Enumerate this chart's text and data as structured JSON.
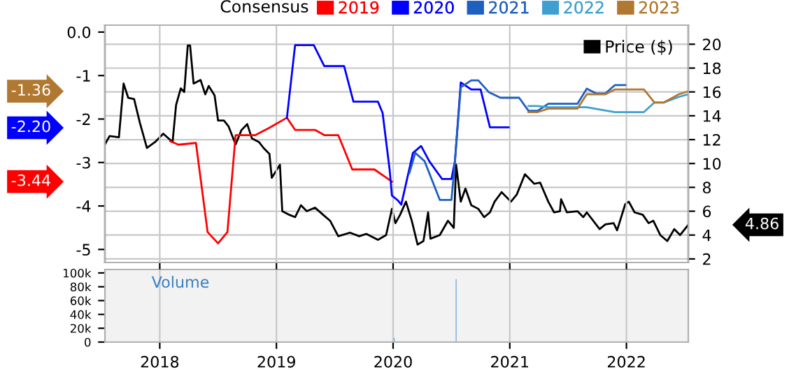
{
  "chart_data": [
    {
      "type": "line",
      "legend_title": "Consensus",
      "legend": "top",
      "grid": true,
      "tick_labels": "y",
      "xlim": [
        2017.53,
        2022.53
      ],
      "xticks": [
        2018,
        2019,
        2020,
        2021,
        2022
      ],
      "ylim": [
        -5.3,
        0.16
      ],
      "yticks": [
        {
          "value": 0,
          "label": "0.0"
        },
        -1,
        -2,
        -3,
        -4,
        -5
      ],
      "y2lim": [
        1.7,
        21.6
      ],
      "y2ticks": [
        2,
        4,
        6,
        8,
        10,
        12,
        14,
        16,
        18,
        20
      ],
      "annotations": [
        "-1.36",
        "-2.20",
        "-3.44",
        "4.86"
      ],
      "series": [
        {
          "name": "2019",
          "color": "#ff0000",
          "x": [
            2018.09,
            2018.16,
            2018.31,
            2018.41,
            2018.5,
            2018.58,
            2018.65,
            2018.82,
            2018.94,
            2019.09,
            2019.16,
            2019.33,
            2019.41,
            2019.53,
            2019.65,
            2019.84,
            2019.99
          ],
          "values": [
            -2.51,
            -2.59,
            -2.55,
            -4.6,
            -4.86,
            -4.6,
            -2.37,
            -2.37,
            -2.2,
            -1.97,
            -2.25,
            -2.25,
            -2.37,
            -2.37,
            -3.16,
            -3.16,
            -3.44
          ]
        },
        {
          "name": "2020",
          "color": "#0000ff",
          "x": [
            2019.09,
            2019.16,
            2019.32,
            2019.41,
            2019.58,
            2019.66,
            2019.87,
            2019.91,
            2019.97,
            2019.99,
            2020.04,
            2020.07,
            2020.17,
            2020.24,
            2020.31,
            2020.42,
            2020.5,
            2020.53,
            2020.58,
            2020.67,
            2020.75,
            2020.83,
            2020.99
          ],
          "values": [
            -1.97,
            -0.3,
            -0.3,
            -0.78,
            -0.78,
            -1.6,
            -1.6,
            -1.86,
            -3.16,
            -3.76,
            -3.87,
            -3.97,
            -2.78,
            -2.62,
            -2.97,
            -3.38,
            -3.38,
            -2.97,
            -1.16,
            -1.32,
            -1.32,
            -2.19,
            -2.19
          ]
        },
        {
          "name": "2021",
          "color": "#1f5fbf",
          "x": [
            2020.14,
            2020.19,
            2020.27,
            2020.4,
            2020.5,
            2020.53,
            2020.58,
            2020.67,
            2020.73,
            2020.82,
            2020.92,
            2021.08,
            2021.16,
            2021.24,
            2021.33,
            2021.58,
            2021.66,
            2021.74,
            2021.82,
            2021.9,
            2021.99
          ],
          "values": [
            -3.24,
            -2.78,
            -2.97,
            -3.86,
            -3.86,
            -2.97,
            -1.27,
            -1.11,
            -1.11,
            -1.38,
            -1.51,
            -1.51,
            -1.81,
            -1.81,
            -1.65,
            -1.65,
            -1.3,
            -1.41,
            -1.41,
            -1.22,
            -1.22
          ]
        },
        {
          "name": "2022",
          "color": "#3fa0d0",
          "x": [
            2021.16,
            2021.24,
            2021.33,
            2021.58,
            2021.66,
            2021.9,
            2022.15,
            2022.24,
            2022.32,
            2022.45,
            2022.53
          ],
          "values": [
            -1.7,
            -1.7,
            -1.73,
            -1.73,
            -1.73,
            -1.84,
            -1.84,
            -1.62,
            -1.62,
            -1.49,
            -1.43
          ]
        },
        {
          "name": "2023",
          "color": "#b07830",
          "x": [
            2021.16,
            2021.24,
            2021.33,
            2021.58,
            2021.66,
            2021.82,
            2021.9,
            2022.15,
            2022.24,
            2022.32,
            2022.45,
            2022.53
          ],
          "values": [
            -1.84,
            -1.84,
            -1.76,
            -1.76,
            -1.43,
            -1.43,
            -1.32,
            -1.32,
            -1.62,
            -1.62,
            -1.43,
            -1.36
          ]
        },
        {
          "name": "Price ($)",
          "color": "#000000",
          "axis": "y2",
          "x": [
            2017.53,
            2017.57,
            2017.65,
            2017.69,
            2017.73,
            2017.78,
            2017.83,
            2017.89,
            2017.96,
            2018.03,
            2018.11,
            2018.14,
            2018.18,
            2018.21,
            2018.24,
            2018.26,
            2018.29,
            2018.35,
            2018.39,
            2018.42,
            2018.47,
            2018.5,
            2018.55,
            2018.59,
            2018.65,
            2018.7,
            2018.75,
            2018.79,
            2018.85,
            2018.89,
            2018.94,
            2018.96,
            2019.03,
            2019.05,
            2019.11,
            2019.16,
            2019.21,
            2019.26,
            2019.33,
            2019.4,
            2019.46,
            2019.53,
            2019.63,
            2019.71,
            2019.77,
            2019.87,
            2019.94,
            2019.99,
            2020.02,
            2020.06,
            2020.11,
            2020.16,
            2020.21,
            2020.26,
            2020.3,
            2020.32,
            2020.4,
            2020.47,
            2020.52,
            2020.54,
            2020.58,
            2020.62,
            2020.67,
            2020.73,
            2020.78,
            2020.83,
            2020.87,
            2020.93,
            2021.01,
            2021.06,
            2021.13,
            2021.21,
            2021.26,
            2021.33,
            2021.38,
            2021.43,
            2021.44,
            2021.49,
            2021.58,
            2021.63,
            2021.66,
            2021.77,
            2021.82,
            2021.89,
            2021.92,
            2021.99,
            2022.02,
            2022.07,
            2022.14,
            2022.19,
            2022.23,
            2022.29,
            2022.35,
            2022.41,
            2022.46,
            2022.53
          ],
          "values": [
            11.6,
            12.3,
            12.2,
            16.7,
            15.5,
            15.4,
            13.4,
            11.3,
            11.8,
            12.5,
            11.8,
            14.9,
            16.3,
            16.0,
            19.9,
            19.9,
            16.7,
            17.0,
            15.8,
            16.5,
            15.7,
            13.6,
            13.6,
            13.1,
            11.6,
            12.8,
            13.3,
            12.1,
            11.8,
            11.3,
            10.8,
            8.8,
            9.9,
            6.0,
            5.7,
            5.5,
            6.5,
            6.0,
            6.3,
            5.7,
            5.2,
            3.9,
            4.2,
            3.9,
            4.1,
            3.6,
            4.0,
            6.2,
            5.0,
            5.7,
            6.8,
            5.2,
            3.2,
            3.5,
            5.9,
            3.7,
            4.0,
            5.2,
            4.6,
            9.9,
            6.8,
            7.9,
            6.5,
            6.2,
            5.5,
            5.9,
            6.8,
            7.6,
            6.8,
            7.4,
            9.1,
            8.3,
            8.4,
            6.8,
            5.9,
            6.0,
            7.0,
            5.9,
            6.0,
            5.5,
            5.9,
            4.5,
            4.9,
            5.0,
            4.4,
            6.6,
            6.8,
            5.9,
            5.7,
            5.0,
            5.2,
            4.0,
            3.5,
            4.5,
            4.0,
            4.86
          ]
        }
      ]
    },
    {
      "type": "bar",
      "ylabel": "Volume",
      "grid": "x",
      "xlim": [
        2017.53,
        2022.53
      ],
      "xticks": [
        2018,
        2019,
        2020,
        2021,
        2022
      ],
      "ylim": [
        0,
        105000
      ],
      "yticks": [
        {
          "value": 0,
          "label": "0"
        },
        {
          "value": 20000,
          "label": "20k"
        },
        {
          "value": 40000,
          "label": "40k"
        },
        {
          "value": 60000,
          "label": "60k"
        },
        {
          "value": 80000,
          "label": "80k"
        },
        {
          "value": 100000,
          "label": "100k"
        }
      ],
      "series": [
        {
          "color": "#4a90d0",
          "x": [
            2020.01,
            2020.54
          ],
          "values": [
            6000,
            91000
          ]
        }
      ]
    }
  ]
}
